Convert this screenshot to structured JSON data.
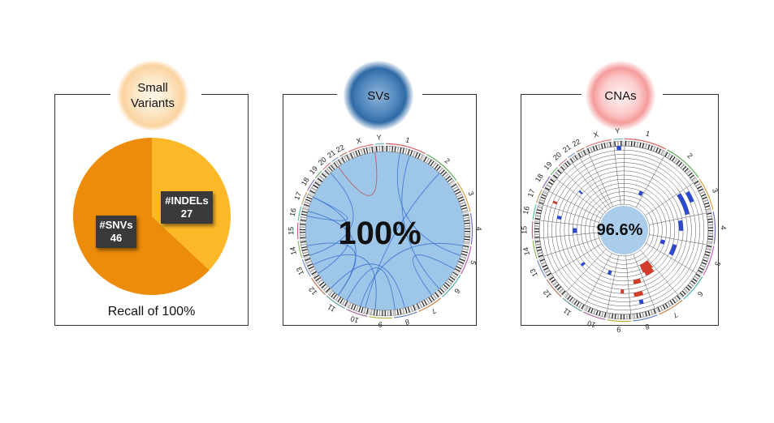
{
  "small_variants": {
    "title_line1": "Small",
    "title_line2": "Variants",
    "snv_label": "#SNVs",
    "snv_count": "46",
    "indel_label": "#INDELs",
    "indel_count": "27",
    "snv_value": 46,
    "indel_value": 27,
    "snv_color": "#ec8c0a",
    "indel_color": "#fdb827",
    "recall": "Recall of 100%"
  },
  "svs": {
    "title": "SVs",
    "percent": "100%",
    "fill_color": "#9dc6e8",
    "link_color": "#3a6fd0"
  },
  "cnas": {
    "title": "CNAs",
    "percent": "96.6%",
    "center_color": "#a9cdea",
    "gain_color": "#2b4ad0",
    "loss_color": "#d63b2a"
  },
  "chromosomes": [
    "1",
    "2",
    "3",
    "4",
    "5",
    "6",
    "7",
    "8",
    "9",
    "10",
    "11",
    "12",
    "13",
    "14",
    "15",
    "16",
    "17",
    "18",
    "19",
    "20",
    "21",
    "22",
    "X",
    "Y"
  ]
}
